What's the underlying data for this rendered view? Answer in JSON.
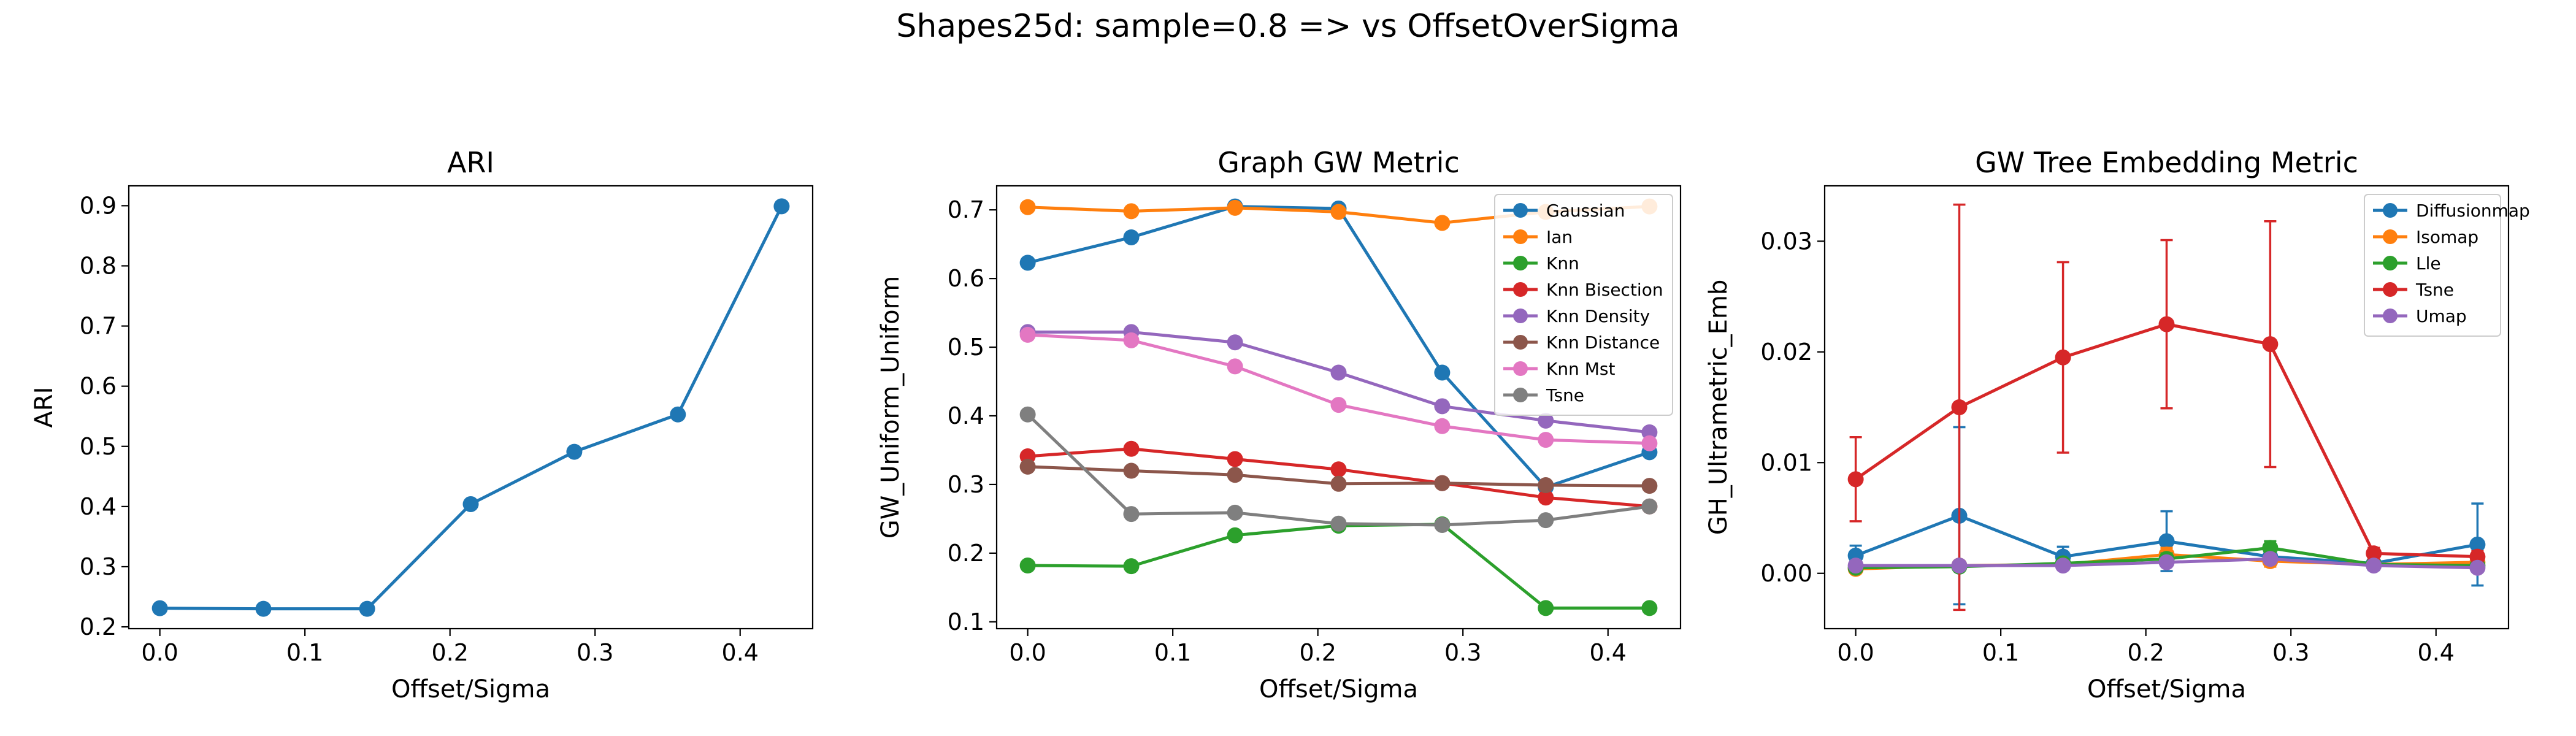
{
  "figure_title": "Shapes25d: sample=0.8 => vs OffsetOverSigma",
  "chart_data": [
    {
      "type": "line",
      "title": "ARI",
      "xlabel": "Offset/Sigma",
      "ylabel": "ARI",
      "x": [
        0.0,
        0.0714,
        0.1429,
        0.2143,
        0.2857,
        0.3571,
        0.4286
      ],
      "xlim": [
        -0.0214,
        0.45
      ],
      "ylim": [
        0.197,
        0.933
      ],
      "xticks": [
        0.0,
        0.1,
        0.2,
        0.3,
        0.4
      ],
      "xtick_labels": [
        "0.0",
        "0.1",
        "0.2",
        "0.3",
        "0.4"
      ],
      "yticks": [
        0.2,
        0.3,
        0.4,
        0.5,
        0.6,
        0.7,
        0.8,
        0.9
      ],
      "ytick_labels": [
        "0.2",
        "0.3",
        "0.4",
        "0.5",
        "0.6",
        "0.7",
        "0.8",
        "0.9"
      ],
      "legend": false,
      "series": [
        {
          "color": "#1f77b4",
          "values": [
            0.231,
            0.23,
            0.23,
            0.404,
            0.491,
            0.553,
            0.899
          ]
        }
      ]
    },
    {
      "type": "line",
      "title": "Graph GW Metric",
      "xlabel": "Offset/Sigma",
      "ylabel": "GW_Uniform_Uniform",
      "x": [
        0.0,
        0.0714,
        0.1429,
        0.2143,
        0.2857,
        0.3571,
        0.4286
      ],
      "xlim": [
        -0.0214,
        0.45
      ],
      "ylim": [
        0.09,
        0.735
      ],
      "xticks": [
        0.0,
        0.1,
        0.2,
        0.3,
        0.4
      ],
      "xtick_labels": [
        "0.0",
        "0.1",
        "0.2",
        "0.3",
        "0.4"
      ],
      "yticks": [
        0.1,
        0.2,
        0.3,
        0.4,
        0.5,
        0.6,
        0.7
      ],
      "ytick_labels": [
        "0.1",
        "0.2",
        "0.3",
        "0.4",
        "0.5",
        "0.6",
        "0.7"
      ],
      "legend": true,
      "legend_placement": "top-right",
      "series": [
        {
          "name": "Gaussian",
          "color": "#1f77b4",
          "values": [
            0.623,
            0.66,
            0.705,
            0.702,
            0.463,
            0.296,
            0.347
          ]
        },
        {
          "name": "Ian",
          "color": "#ff7f0e",
          "values": [
            0.704,
            0.698,
            0.703,
            0.697,
            0.681,
            0.697,
            0.705
          ]
        },
        {
          "name": "Knn",
          "color": "#2ca02c",
          "values": [
            0.182,
            0.181,
            0.226,
            0.24,
            0.242,
            0.12,
            0.12
          ]
        },
        {
          "name": "Knn Bisection",
          "color": "#d62728",
          "values": [
            0.341,
            0.352,
            0.337,
            0.322,
            0.302,
            0.281,
            0.268
          ]
        },
        {
          "name": "Knn Density",
          "color": "#9467bd",
          "values": [
            0.522,
            0.522,
            0.507,
            0.463,
            0.414,
            0.393,
            0.376
          ]
        },
        {
          "name": "Knn Distance",
          "color": "#8c564b",
          "values": [
            0.326,
            0.32,
            0.314,
            0.301,
            0.302,
            0.299,
            0.298
          ]
        },
        {
          "name": "Knn Mst",
          "color": "#e377c2",
          "values": [
            0.518,
            0.51,
            0.472,
            0.416,
            0.385,
            0.365,
            0.36
          ]
        },
        {
          "name": "Tsne",
          "color": "#7f7f7f",
          "values": [
            0.402,
            0.257,
            0.259,
            0.243,
            0.241,
            0.248,
            0.268
          ]
        }
      ]
    },
    {
      "type": "line",
      "title": "GW Tree Embedding Metric",
      "xlabel": "Offset/Sigma",
      "ylabel": "GH_Ultrametric_Emb",
      "x": [
        0.0,
        0.0714,
        0.1429,
        0.2143,
        0.2857,
        0.3571,
        0.4286
      ],
      "xlim": [
        -0.0214,
        0.45
      ],
      "ylim": [
        -0.005,
        0.035
      ],
      "xticks": [
        0.0,
        0.1,
        0.2,
        0.3,
        0.4
      ],
      "xtick_labels": [
        "0.0",
        "0.1",
        "0.2",
        "0.3",
        "0.4"
      ],
      "yticks": [
        0.0,
        0.01,
        0.02,
        0.03
      ],
      "ytick_labels": [
        "0.00",
        "0.01",
        "0.02",
        "0.03"
      ],
      "legend": true,
      "legend_placement": "top-right",
      "error_bars": true,
      "series": [
        {
          "name": "Diffusionmap",
          "color": "#1f77b4",
          "values": [
            0.0016,
            0.0052,
            0.0015,
            0.0029,
            0.0015,
            0.0009,
            0.0026
          ],
          "errors": [
            0.0009,
            0.008,
            0.0009,
            0.0027,
            0.0006,
            0.0006,
            0.0037
          ]
        },
        {
          "name": "Isomap",
          "color": "#ff7f0e",
          "values": [
            0.0004,
            0.0007,
            0.0008,
            0.0017,
            0.0011,
            0.0008,
            0.001
          ],
          "errors": [
            0.0003,
            0.0004,
            0.0004,
            0.0006,
            0.0005,
            0.0003,
            0.0004
          ]
        },
        {
          "name": "Lle",
          "color": "#2ca02c",
          "values": [
            0.0005,
            0.0006,
            0.0009,
            0.0013,
            0.0023,
            0.0008,
            0.0007
          ],
          "errors": [
            0.0002,
            0.0003,
            0.0003,
            0.0005,
            0.0006,
            0.0003,
            0.0003
          ]
        },
        {
          "name": "Tsne",
          "color": "#d62728",
          "values": [
            0.0085,
            0.015,
            0.0195,
            0.0225,
            0.0207,
            0.0018,
            0.0015
          ],
          "errors": [
            0.0038,
            0.0183,
            0.0086,
            0.0076,
            0.0111,
            0.0005,
            0.0005
          ]
        },
        {
          "name": "Umap",
          "color": "#9467bd",
          "values": [
            0.0007,
            0.0007,
            0.0007,
            0.001,
            0.0013,
            0.0007,
            0.0005
          ],
          "errors": [
            0.0002,
            0.0002,
            0.0002,
            0.0003,
            0.0004,
            0.0002,
            0.0002
          ]
        }
      ]
    }
  ]
}
